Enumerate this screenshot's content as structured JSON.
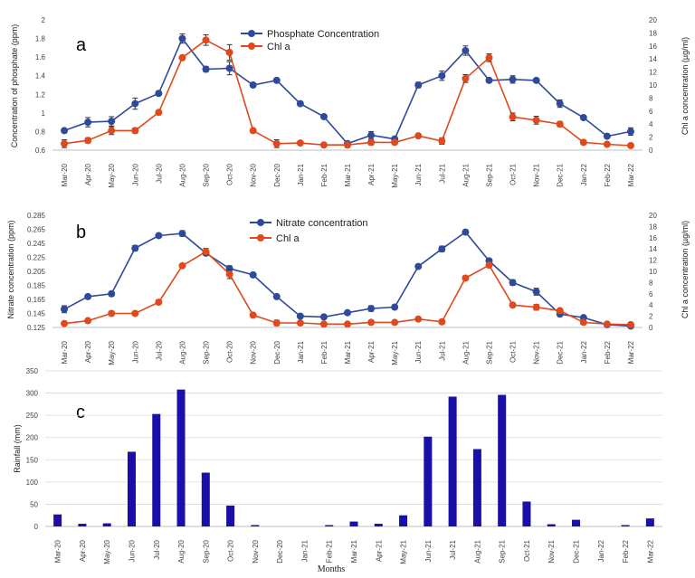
{
  "colors": {
    "blue": "#2e4a9c",
    "orange": "#e0491c",
    "bar": "#1a0fa8",
    "grid": "#d9d9d9"
  },
  "chart_data": [
    {
      "type": "line",
      "panel": "a",
      "categories": [
        "Mar-20",
        "Apr-20",
        "May-20",
        "Jun-20",
        "Jul-20",
        "Aug-20",
        "Sep-20",
        "Oct-20",
        "Nov-20",
        "Dec-20",
        "Jan-21",
        "Feb-21",
        "Mar-21",
        "Apr-21",
        "May-21",
        "Jun-21",
        "Jul-21",
        "Aug-21",
        "Sep-21",
        "Oct-21",
        "Nov-21",
        "Dec-21",
        "Jan-22",
        "Feb-22",
        "Mar-22"
      ],
      "ylabel": "Concentration of phosphate  (ppm)",
      "ylabel2": "Chl a concentration (µg/ml)",
      "ylim": [
        0.6,
        2
      ],
      "yticks": [
        "0.6",
        "0.8",
        "1",
        "1.2",
        "1.4",
        "1.6",
        "1.8",
        "2"
      ],
      "ylim2": [
        0,
        20
      ],
      "yticks2": [
        "0",
        "2",
        "4",
        "6",
        "8",
        "10",
        "12",
        "14",
        "16",
        "18",
        "20"
      ],
      "series": [
        {
          "name": "Phosphate Concentration",
          "axis": "left",
          "color": "#2e4a9c",
          "values": [
            0.81,
            0.9,
            0.91,
            1.1,
            1.21,
            1.8,
            1.47,
            1.48,
            1.3,
            1.35,
            1.1,
            0.96,
            0.67,
            0.76,
            0.72,
            1.3,
            1.4,
            1.67,
            1.35,
            1.36,
            1.35,
            1.1,
            0.95,
            0.75,
            0.8
          ],
          "errors": [
            0.02,
            0.05,
            0.05,
            0.06,
            0.02,
            0.05,
            0.03,
            0.07,
            0.02,
            0.02,
            0.02,
            0.02,
            0.02,
            0.04,
            0.02,
            0.03,
            0.05,
            0.05,
            0.02,
            0.04,
            0.02,
            0.04,
            0.02,
            0.02,
            0.04
          ]
        },
        {
          "name": "Chl a",
          "axis": "right",
          "color": "#e0491c",
          "values": [
            1.0,
            1.5,
            3.0,
            3.0,
            5.8,
            14.2,
            16.9,
            15.0,
            3.0,
            1.0,
            1.1,
            0.8,
            0.8,
            1.2,
            1.2,
            2.2,
            1.4,
            11.0,
            14.2,
            5.1,
            4.6,
            4.0,
            1.2,
            0.9,
            0.7
          ],
          "errors": [
            0.6,
            0.4,
            0.6,
            0.4,
            0.3,
            0.3,
            0.8,
            1.2,
            0.2,
            0.6,
            0.3,
            0.2,
            0.4,
            0.4,
            0.3,
            0.3,
            0.5,
            0.6,
            0.6,
            0.6,
            0.6,
            0.4,
            0.2,
            0.2,
            0.2
          ]
        }
      ]
    },
    {
      "type": "line",
      "panel": "b",
      "categories": [
        "Mar-20",
        "Apr-20",
        "May-20",
        "Jun-20",
        "Jul-20",
        "Aug-20",
        "Sep-20",
        "Oct-20",
        "Nov-20",
        "Dec-20",
        "Jan-21",
        "Feb-21",
        "Mar-21",
        "Apr-21",
        "May-21",
        "Jun-21",
        "Jul-21",
        "Aug-21",
        "Sep-21",
        "Oct-21",
        "Nov-21",
        "Dec-21",
        "Jan-22",
        "Feb-22",
        "Mar-22"
      ],
      "ylabel": "Nitrate concentration (ppm)",
      "ylabel2": "Chl a concentration (µg/ml)",
      "ylim": [
        0.125,
        0.285
      ],
      "yticks": [
        "0.125",
        "0.145",
        "0.165",
        "0.185",
        "0.205",
        "0.225",
        "0.245",
        "0.265",
        "0.285"
      ],
      "ylim2": [
        0,
        20
      ],
      "yticks2": [
        "0",
        "2",
        "4",
        "6",
        "8",
        "10",
        "12",
        "14",
        "16",
        "18",
        "20"
      ],
      "series": [
        {
          "name": "Nitrate concentration",
          "axis": "left",
          "color": "#2e4a9c",
          "values": [
            0.151,
            0.169,
            0.173,
            0.238,
            0.256,
            0.259,
            0.231,
            0.209,
            0.2,
            0.169,
            0.141,
            0.14,
            0.146,
            0.152,
            0.154,
            0.212,
            0.237,
            0.261,
            0.22,
            0.189,
            0.176,
            0.144,
            0.139,
            0.129,
            0.127
          ],
          "errors": [
            0.005,
            0.002,
            0.003,
            0.004,
            0.002,
            0.004,
            0.002,
            0.004,
            0.002,
            0.002,
            0.002,
            0.002,
            0.002,
            0.004,
            0.003,
            0.003,
            0.004,
            0.002,
            0.002,
            0.004,
            0.005,
            0.002,
            0.002,
            0.002,
            0.002
          ]
        },
        {
          "name": "Chl a",
          "axis": "right",
          "color": "#e0491c",
          "values": [
            0.7,
            1.2,
            2.5,
            2.5,
            4.5,
            11.0,
            13.5,
            9.5,
            2.2,
            0.8,
            0.8,
            0.6,
            0.6,
            0.9,
            0.9,
            1.5,
            1.0,
            8.8,
            11.1,
            4.0,
            3.6,
            3.0,
            0.9,
            0.6,
            0.5
          ],
          "errors": [
            0.2,
            0.3,
            0.4,
            0.3,
            0.4,
            0.3,
            0.6,
            0.8,
            0.2,
            0.5,
            0.2,
            0.2,
            0.2,
            0.2,
            0.2,
            0.3,
            0.4,
            0.4,
            0.3,
            0.4,
            0.5,
            0.3,
            0.2,
            0.2,
            0.2
          ]
        }
      ]
    },
    {
      "type": "bar",
      "panel": "c",
      "categories": [
        "Mar-20",
        "Apr-20",
        "May-20",
        "Jun-20",
        "Jul-20",
        "Aug-20",
        "Sep-20",
        "Oct-20",
        "Nov-20",
        "Dec-20",
        "Jan-21",
        "Feb-21",
        "Mar-21",
        "Apr-21",
        "May-21",
        "Jun-21",
        "Jul-21",
        "Aug-21",
        "Sep-21",
        "Oct-21",
        "Nov-21",
        "Dec-21",
        "Jan-22",
        "Feb-22",
        "Mar-22"
      ],
      "values": [
        27,
        6,
        7,
        168,
        253,
        308,
        121,
        47,
        3,
        0,
        0,
        3,
        11,
        6,
        25,
        202,
        292,
        174,
        296,
        56,
        5,
        15,
        0,
        3,
        18
      ],
      "ylabel": "Rainfall (mm)",
      "xlabel": "Months",
      "ylim": [
        0,
        350
      ],
      "yticks": [
        "0",
        "50",
        "100",
        "150",
        "200",
        "250",
        "300",
        "350"
      ],
      "color": "#1a0fa8"
    }
  ]
}
